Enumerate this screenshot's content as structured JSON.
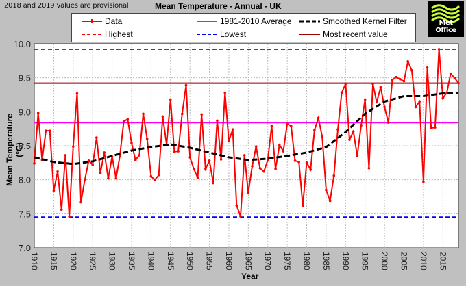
{
  "header": {
    "note": "2018 and 2019 values are provisional",
    "title": "Mean Temperature - Annual - UK",
    "logo_text": "Met Office"
  },
  "legend": {
    "items": [
      {
        "label": "Data",
        "color": "#ff0000",
        "style": "solid-marker"
      },
      {
        "label": "1981-2010 Average",
        "color": "#ff00ff",
        "style": "solid"
      },
      {
        "label": "Smoothed Kernel Filter",
        "color": "#000000",
        "style": "dashed"
      },
      {
        "label": "Highest",
        "color": "#ff0000",
        "style": "dashed"
      },
      {
        "label": "Lowest",
        "color": "#0000ff",
        "style": "dashed"
      },
      {
        "label": "Most recent value",
        "color": "#990000",
        "style": "solid"
      }
    ]
  },
  "chart_data": {
    "type": "line",
    "title": "Mean Temperature - Annual - UK",
    "xlabel": "Year",
    "ylabel": "Mean Temperature (°C)",
    "xlim": [
      1910,
      2019
    ],
    "ylim": [
      7.0,
      10.0
    ],
    "yticks": [
      "7.0",
      "7.5",
      "8.0",
      "8.5",
      "9.0",
      "9.5",
      "10.0"
    ],
    "xticks": [
      "1910",
      "1915",
      "1920",
      "1925",
      "1930",
      "1935",
      "1940",
      "1945",
      "1950",
      "1955",
      "1960",
      "1965",
      "1970",
      "1975",
      "1980",
      "1985",
      "1990",
      "1995",
      "2000",
      "2005",
      "2010",
      "2015"
    ],
    "grid": true,
    "legend_position": "top",
    "series": [
      {
        "name": "Data",
        "color": "#ff0000",
        "x": [
          1910,
          1911,
          1912,
          1913,
          1914,
          1915,
          1916,
          1917,
          1918,
          1919,
          1920,
          1921,
          1922,
          1923,
          1924,
          1925,
          1926,
          1927,
          1928,
          1929,
          1930,
          1931,
          1932,
          1933,
          1934,
          1935,
          1936,
          1937,
          1938,
          1939,
          1940,
          1941,
          1942,
          1943,
          1944,
          1945,
          1946,
          1947,
          1948,
          1949,
          1950,
          1951,
          1952,
          1953,
          1954,
          1955,
          1956,
          1957,
          1958,
          1959,
          1960,
          1961,
          1962,
          1963,
          1964,
          1965,
          1966,
          1967,
          1968,
          1969,
          1970,
          1971,
          1972,
          1973,
          1974,
          1975,
          1976,
          1977,
          1978,
          1979,
          1980,
          1981,
          1982,
          1983,
          1984,
          1985,
          1986,
          1987,
          1988,
          1989,
          1990,
          1991,
          1992,
          1993,
          1994,
          1995,
          1996,
          1997,
          1998,
          1999,
          2000,
          2001,
          2002,
          2003,
          2004,
          2005,
          2006,
          2007,
          2008,
          2009,
          2010,
          2011,
          2012,
          2013,
          2014,
          2015,
          2016,
          2017,
          2018,
          2019
        ],
        "values": [
          8.24,
          8.98,
          8.29,
          8.72,
          8.72,
          7.84,
          8.12,
          7.56,
          8.36,
          7.46,
          8.49,
          9.27,
          7.67,
          8.0,
          8.28,
          8.22,
          8.62,
          8.1,
          8.4,
          8.02,
          8.34,
          8.02,
          8.35,
          8.86,
          8.89,
          8.54,
          8.29,
          8.36,
          8.97,
          8.6,
          8.05,
          8.0,
          8.07,
          8.93,
          8.52,
          9.18,
          8.41,
          8.42,
          8.97,
          9.39,
          8.33,
          8.16,
          8.03,
          8.96,
          8.16,
          8.28,
          7.95,
          8.87,
          8.3,
          9.28,
          8.57,
          8.74,
          7.62,
          7.46,
          8.36,
          7.81,
          8.2,
          8.49,
          8.17,
          8.12,
          8.29,
          8.79,
          8.16,
          8.51,
          8.42,
          8.82,
          8.79,
          8.28,
          8.26,
          7.62,
          8.25,
          8.15,
          8.73,
          8.91,
          8.63,
          7.85,
          7.69,
          8.06,
          8.74,
          9.28,
          9.41,
          8.59,
          8.71,
          8.35,
          8.8,
          9.18,
          8.17,
          9.41,
          9.14,
          9.36,
          9.07,
          8.84,
          9.47,
          9.51,
          9.48,
          9.45,
          9.74,
          9.61,
          9.07,
          9.15,
          7.97,
          9.65,
          8.76,
          8.77,
          9.92,
          9.2,
          9.28,
          9.56,
          9.5,
          9.42
        ]
      },
      {
        "name": "Smoothed Kernel Filter",
        "color": "#000000",
        "x": [
          1910,
          1915,
          1920,
          1925,
          1930,
          1935,
          1940,
          1945,
          1950,
          1955,
          1960,
          1965,
          1970,
          1975,
          1980,
          1985,
          1990,
          1995,
          2000,
          2005,
          2010,
          2015,
          2019
        ],
        "values": [
          8.33,
          8.26,
          8.23,
          8.27,
          8.35,
          8.43,
          8.48,
          8.52,
          8.47,
          8.4,
          8.33,
          8.29,
          8.31,
          8.35,
          8.4,
          8.48,
          8.7,
          8.97,
          9.15,
          9.23,
          9.23,
          9.27,
          9.28
        ]
      },
      {
        "name": "1981-2010 Average",
        "color": "#ff00ff",
        "constant": 8.84
      },
      {
        "name": "Highest",
        "color": "#ff0000",
        "constant": 9.92
      },
      {
        "name": "Lowest",
        "color": "#0000ff",
        "constant": 7.45
      },
      {
        "name": "Most recent value",
        "color": "#990000",
        "constant": 9.42
      }
    ]
  }
}
